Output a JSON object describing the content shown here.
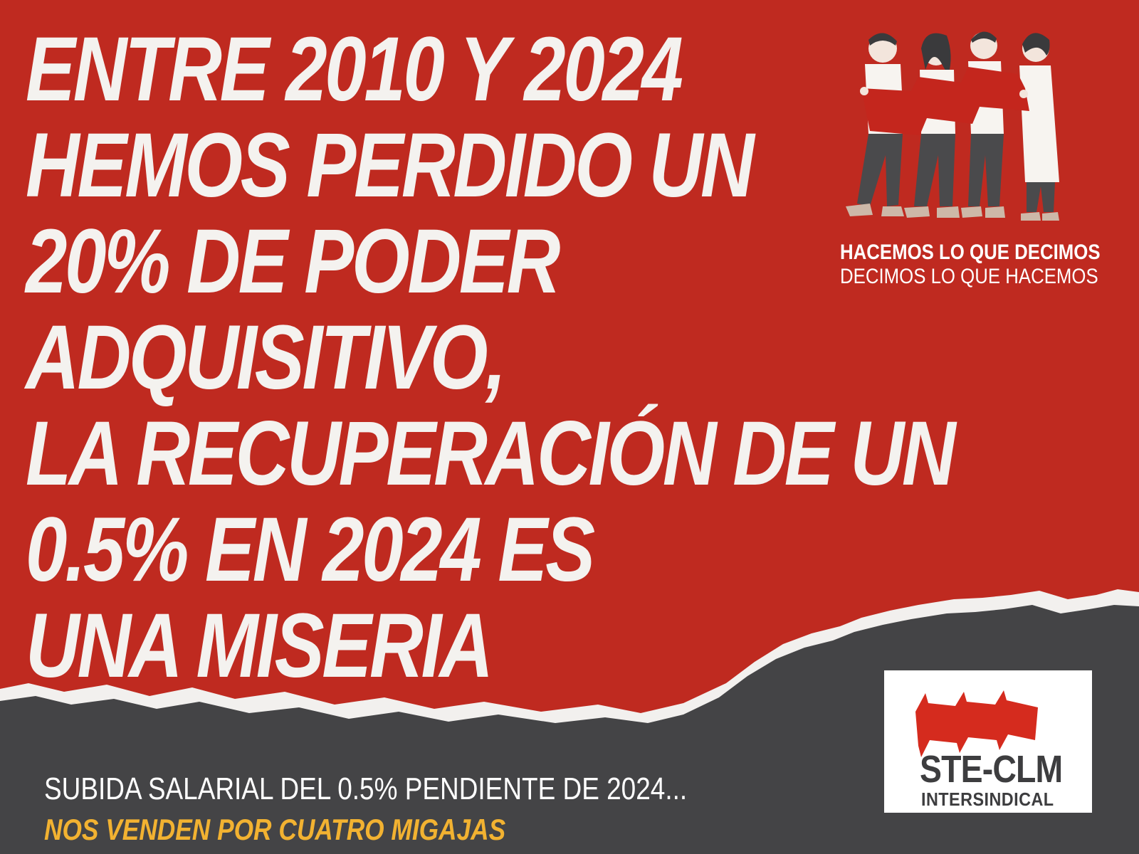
{
  "headline": {
    "lines": [
      "ENTRE 2010 Y 2024",
      "HEMOS PERDIDO UN",
      "20% DE PODER",
      "ADQUISITIVO,",
      "LA RECUPERACIÓN DE UN",
      "0.5% EN 2024 ES",
      "UNA MISERIA"
    ]
  },
  "slogan": {
    "line1": "HACEMOS LO QUE DECIMOS",
    "line2": "DECIMOS LO QUE HACEMOS"
  },
  "footer": {
    "line1": "SUBIDA SALARIAL DEL 0.5% PENDIENTE DE 2024...",
    "line2": "NOS VENDEN POR CUATRO MIGAJAS"
  },
  "logo": {
    "name": "STE-CLM",
    "subtitle": "INTERSINDICAL"
  },
  "colors": {
    "background_red": "#bf2a20",
    "dark_gray": "#444446",
    "headline_white": "#f4f2ef",
    "accent_yellow": "#f2b231"
  }
}
